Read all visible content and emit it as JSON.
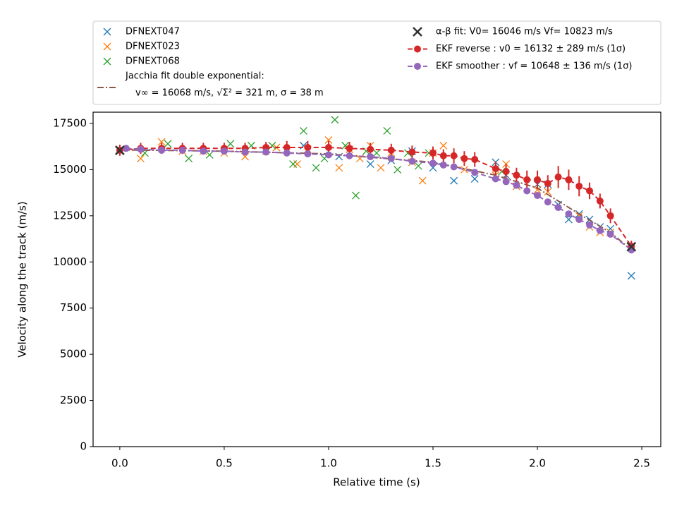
{
  "chart_data": {
    "type": "line",
    "xlabel": "Relative time (s)",
    "ylabel": "Velocity along the track (m/s)",
    "xlim": [
      -0.128,
      2.591
    ],
    "ylim": [
      0,
      18110
    ],
    "xticks": [
      {
        "value": 0,
        "label": "0.0"
      },
      0.5,
      {
        "value": 1,
        "label": "1.0"
      },
      1.5,
      {
        "value": 2,
        "label": "2.0"
      },
      2.5
    ],
    "yticks": [
      0,
      2500,
      5000,
      7500,
      10000,
      12500,
      15000,
      17500
    ],
    "grid": false,
    "legend": "top",
    "series": [
      {
        "name": "DFNEXT047",
        "color": "#1f77b4",
        "marker": "x",
        "line": "none",
        "x": [
          0.88,
          1.05,
          1.2,
          1.3,
          1.4,
          1.5,
          1.6,
          1.7,
          1.8,
          1.85,
          1.9,
          2.0,
          2.05,
          2.1,
          2.15,
          2.2,
          2.25,
          2.3,
          2.35,
          2.45
        ],
        "values": [
          16300,
          15700,
          15300,
          15500,
          16000,
          15100,
          14400,
          14500,
          15400,
          14700,
          14100,
          14200,
          14200,
          13100,
          12300,
          12600,
          12300,
          11900,
          11800,
          9250
        ]
      },
      {
        "name": "DFNEXT023",
        "color": "#ff7f0e",
        "marker": "x",
        "line": "none",
        "x": [
          0.1,
          0.2,
          0.3,
          0.4,
          0.5,
          0.6,
          0.7,
          0.75,
          0.85,
          0.9,
          1.0,
          1.05,
          1.1,
          1.15,
          1.2,
          1.25,
          1.3,
          1.4,
          1.45,
          1.5,
          1.55,
          1.65,
          1.8,
          1.85,
          1.9,
          2.0,
          2.05,
          2.2,
          2.25,
          2.3,
          2.35
        ],
        "values": [
          15600,
          16500,
          16000,
          16000,
          15900,
          15700,
          16000,
          16200,
          15300,
          16100,
          16600,
          15100,
          16100,
          15600,
          16300,
          15100,
          15900,
          15400,
          14400,
          15900,
          16300,
          15000,
          14700,
          15300,
          14100,
          13900,
          13800,
          12500,
          11900,
          11600,
          11600
        ]
      },
      {
        "name": "DFNEXT068",
        "color": "#2ca02c",
        "marker": "x",
        "line": "none",
        "x": [
          0.12,
          0.23,
          0.33,
          0.43,
          0.53,
          0.63,
          0.73,
          0.83,
          0.88,
          0.94,
          0.98,
          1.03,
          1.08,
          1.13,
          1.18,
          1.23,
          1.28,
          1.33,
          1.38,
          1.43,
          1.48,
          1.83
        ],
        "values": [
          15900,
          16400,
          15600,
          15800,
          16400,
          16300,
          16300,
          15300,
          17100,
          15100,
          15600,
          17700,
          16300,
          13600,
          16000,
          15900,
          17100,
          15000,
          15900,
          15200,
          15900,
          14900
        ]
      },
      {
        "name": "Jacchia fit double exponential:",
        "legend_detail": "v∞ = 16068 m/s, √Σ² = 321 m, σ = 38 m",
        "color": "#8c564b",
        "marker": "none",
        "line": "dashdot",
        "x": [
          0,
          0.5,
          1.0,
          1.5,
          1.8,
          2.0,
          2.2,
          2.35,
          2.45
        ],
        "values": [
          16068,
          16000,
          15850,
          15400,
          14700,
          14000,
          12600,
          11600,
          10650
        ]
      },
      {
        "name": "α-β fit: V0= 16046 m/s   Vf= 10823 m/s",
        "color": "#333333",
        "marker": "X",
        "line": "none",
        "x": [
          0,
          2.45
        ],
        "values": [
          16046,
          10823
        ]
      },
      {
        "name": "EKF reverse : v0 =  16132 ± 289 m/s (1σ)",
        "color": "#d62728",
        "marker": "o",
        "line": "dashed",
        "x": [
          0,
          0.1,
          0.2,
          0.3,
          0.4,
          0.5,
          0.6,
          0.7,
          0.8,
          0.9,
          1.0,
          1.1,
          1.2,
          1.3,
          1.4,
          1.5,
          1.55,
          1.6,
          1.65,
          1.7,
          1.8,
          1.85,
          1.9,
          1.95,
          2.0,
          2.05,
          2.1,
          2.15,
          2.2,
          2.25,
          2.3,
          2.35,
          2.45
        ],
        "values": [
          16050,
          16150,
          16150,
          16150,
          16150,
          16150,
          16150,
          16200,
          16200,
          16200,
          16200,
          16150,
          16100,
          16050,
          15950,
          15900,
          15750,
          15750,
          15600,
          15550,
          15050,
          14900,
          14700,
          14450,
          14450,
          14250,
          14600,
          14450,
          14100,
          13850,
          13300,
          12500,
          10850
        ],
        "errors": [
          300,
          300,
          300,
          300,
          300,
          300,
          300,
          300,
          350,
          350,
          350,
          350,
          350,
          350,
          350,
          350,
          350,
          400,
          400,
          400,
          400,
          400,
          400,
          500,
          500,
          450,
          600,
          550,
          550,
          450,
          400,
          400,
          300
        ]
      },
      {
        "name": "EKF smoother : vf =  10648 ± 136 m/s (1σ)",
        "color": "#9467bd",
        "marker": "o",
        "line": "dashed",
        "x": [
          0.03,
          0.1,
          0.2,
          0.3,
          0.4,
          0.5,
          0.6,
          0.7,
          0.8,
          0.9,
          1.0,
          1.1,
          1.2,
          1.3,
          1.4,
          1.5,
          1.55,
          1.6,
          1.7,
          1.8,
          1.85,
          1.9,
          1.95,
          2.0,
          2.05,
          2.1,
          2.15,
          2.2,
          2.25,
          2.3,
          2.35,
          2.45
        ],
        "values": [
          16150,
          16100,
          16050,
          16050,
          16000,
          16000,
          15950,
          15950,
          15900,
          15850,
          15800,
          15750,
          15700,
          15600,
          15450,
          15350,
          15250,
          15150,
          14850,
          14500,
          14350,
          14150,
          13850,
          13600,
          13250,
          12950,
          12600,
          12300,
          12000,
          11700,
          11500,
          10650
        ]
      }
    ]
  }
}
